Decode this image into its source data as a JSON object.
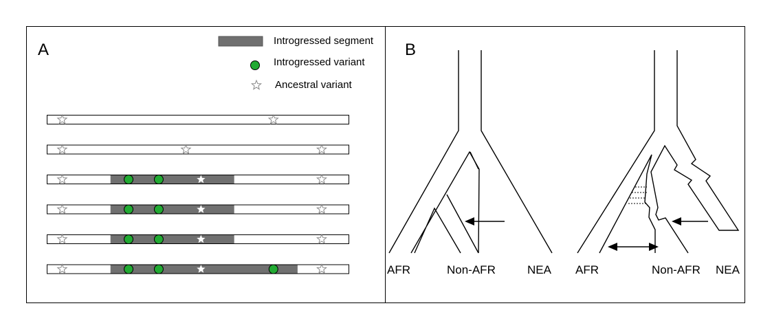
{
  "panel_a": {
    "letter": "A",
    "legend": {
      "segment_label": "Introgressed segment",
      "variant_label": "Introgressed variant",
      "ancestral_label": "Ancestral variant"
    },
    "haplotypes": [
      {
        "segment": null,
        "ancestral": [
          0.05,
          0.75
        ],
        "ancestral_filled": [],
        "introgressed": []
      },
      {
        "segment": null,
        "ancestral": [
          0.05,
          0.46,
          0.91
        ],
        "ancestral_filled": [],
        "introgressed": []
      },
      {
        "segment": [
          0.21,
          0.62
        ],
        "ancestral": [
          0.05,
          0.91
        ],
        "ancestral_filled": [
          0.51
        ],
        "introgressed": [
          0.27,
          0.37
        ]
      },
      {
        "segment": [
          0.21,
          0.62
        ],
        "ancestral": [
          0.05,
          0.91
        ],
        "ancestral_filled": [
          0.51
        ],
        "introgressed": [
          0.27,
          0.37
        ]
      },
      {
        "segment": [
          0.21,
          0.62
        ],
        "ancestral": [
          0.05,
          0.91
        ],
        "ancestral_filled": [
          0.51
        ],
        "introgressed": [
          0.27,
          0.37
        ]
      },
      {
        "segment": [
          0.21,
          0.83
        ],
        "ancestral": [
          0.05,
          0.91
        ],
        "ancestral_filled": [
          0.51
        ],
        "introgressed": [
          0.27,
          0.37,
          0.75
        ]
      }
    ],
    "colors": {
      "segment": "#707070",
      "variant": "#22aa33"
    }
  },
  "panel_b": {
    "letter": "B",
    "left_tree": {
      "labels": [
        "AFR",
        "Non-AFR",
        "NEA"
      ]
    },
    "right_tree": {
      "labels": [
        "AFR",
        "Non-AFR",
        "NEA"
      ]
    }
  }
}
